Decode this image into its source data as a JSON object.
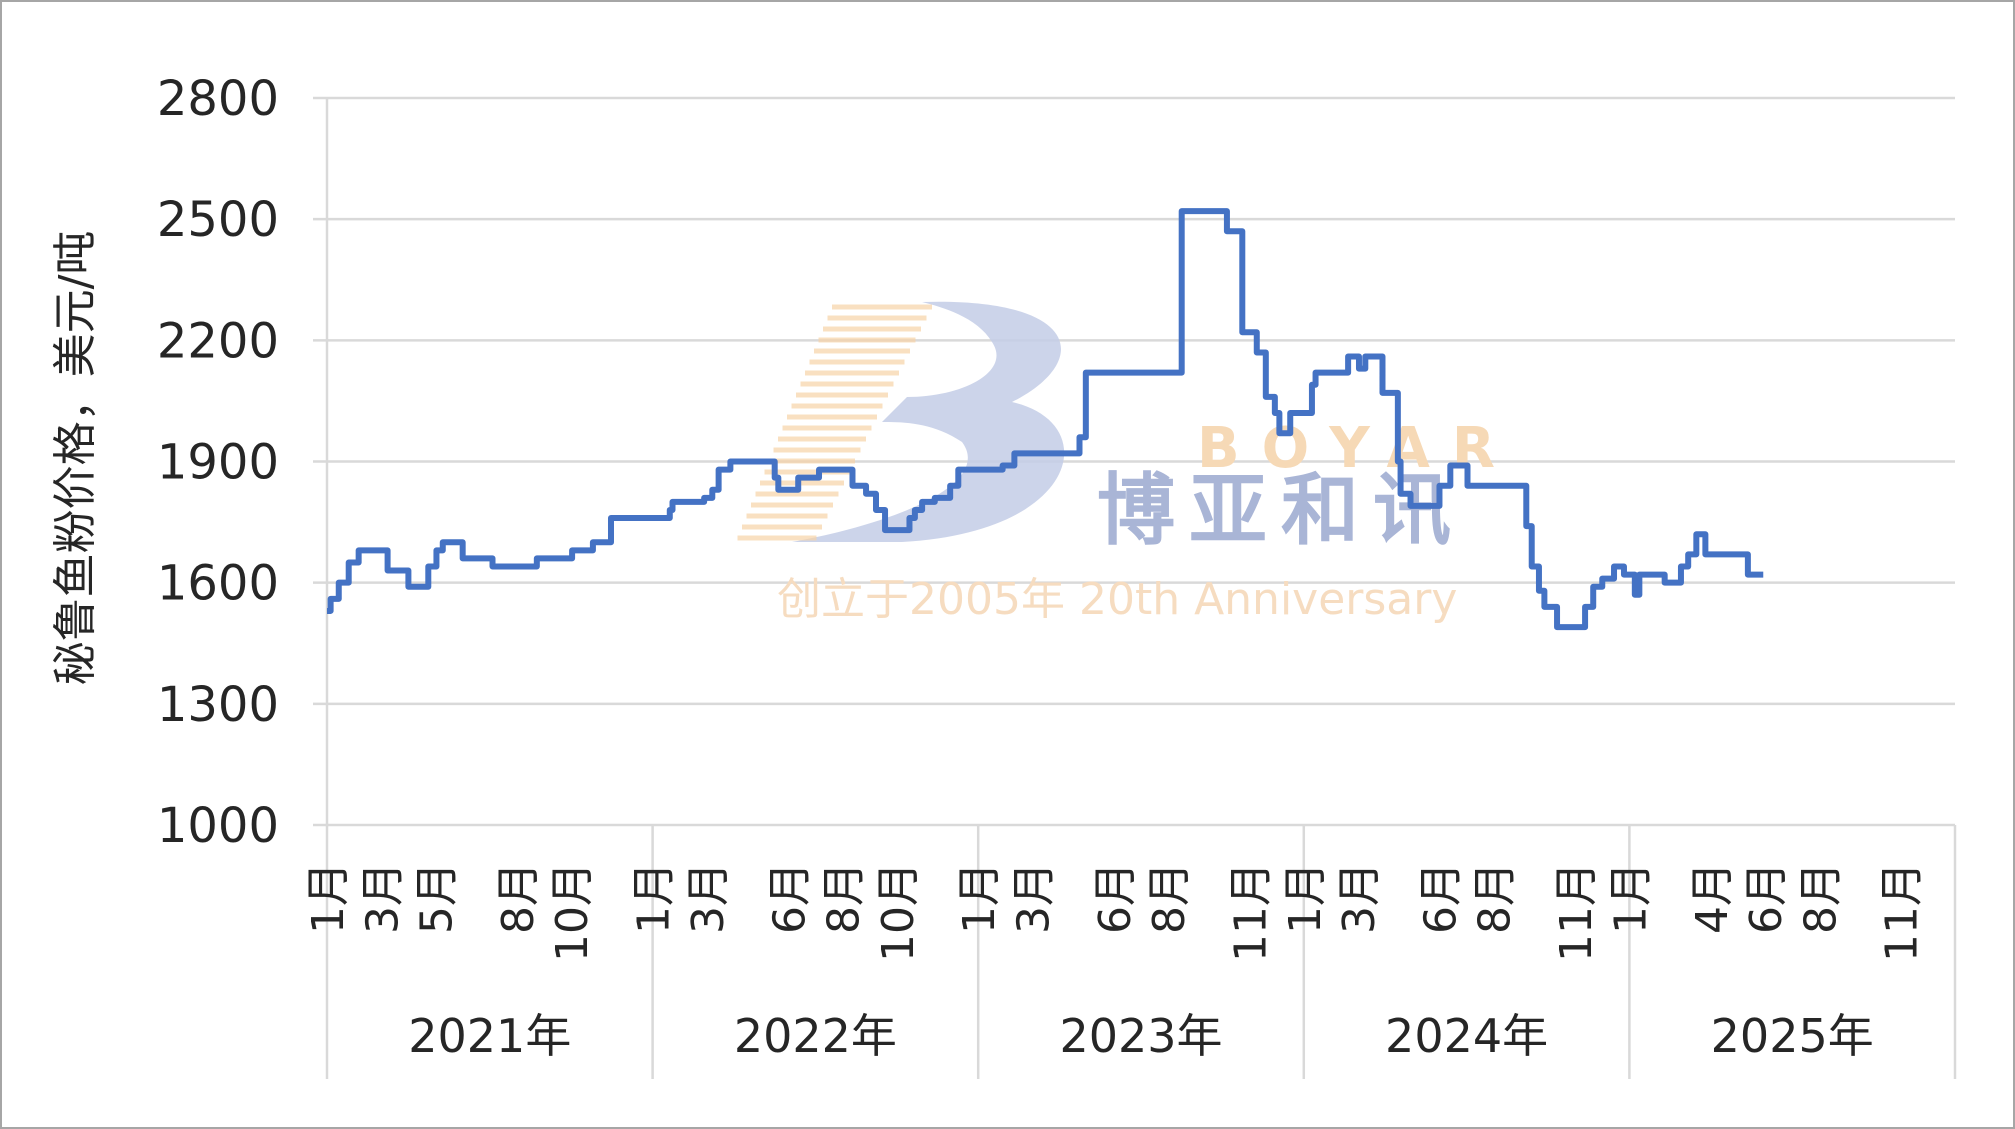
{
  "chart_data": {
    "type": "line",
    "step": true,
    "ylabel": "秘鲁鱼粉价格，美元/吨",
    "ylim": [
      1000,
      2800
    ],
    "yticks": [
      1000,
      1300,
      1600,
      1900,
      2200,
      2500,
      2800
    ],
    "grid": true,
    "legend": "none",
    "color": "#4472c4",
    "xrange": [
      "2021-01",
      "2025-12"
    ],
    "year_groups": [
      {
        "year": "2021年",
        "months": [
          "1月",
          "3月",
          "5月",
          "8月",
          "10月"
        ],
        "month_nums": [
          1,
          3,
          5,
          8,
          10
        ]
      },
      {
        "year": "2022年",
        "months": [
          "1月",
          "3月",
          "6月",
          "8月",
          "10月"
        ],
        "month_nums": [
          1,
          3,
          6,
          8,
          10
        ]
      },
      {
        "year": "2023年",
        "months": [
          "1月",
          "3月",
          "6月",
          "8月",
          "11月"
        ],
        "month_nums": [
          1,
          3,
          6,
          8,
          11
        ]
      },
      {
        "year": "2024年",
        "months": [
          "1月",
          "3月",
          "6月",
          "8月",
          "11月"
        ],
        "month_nums": [
          1,
          3,
          6,
          8,
          11
        ]
      },
      {
        "year": "2025年",
        "months": [
          "1月",
          "4月",
          "6月",
          "8月",
          "11月"
        ],
        "month_nums": [
          1,
          4,
          6,
          8,
          11
        ]
      }
    ],
    "points": [
      [
        "2021-01-01",
        1530
      ],
      [
        "2021-01-05",
        1560
      ],
      [
        "2021-01-14",
        1600
      ],
      [
        "2021-01-25",
        1650
      ],
      [
        "2021-02-06",
        1680
      ],
      [
        "2021-03-08",
        1630
      ],
      [
        "2021-04-01",
        1590
      ],
      [
        "2021-04-23",
        1640
      ],
      [
        "2021-05-02",
        1680
      ],
      [
        "2021-05-09",
        1700
      ],
      [
        "2021-05-31",
        1660
      ],
      [
        "2021-07-04",
        1640
      ],
      [
        "2021-08-23",
        1660
      ],
      [
        "2021-10-02",
        1680
      ],
      [
        "2021-10-25",
        1700
      ],
      [
        "2021-11-15",
        1760
      ],
      [
        "2022-01-20",
        1780
      ],
      [
        "2022-01-23",
        1800
      ],
      [
        "2022-02-28",
        1810
      ],
      [
        "2022-03-07",
        1830
      ],
      [
        "2022-03-14",
        1880
      ],
      [
        "2022-03-27",
        1900
      ],
      [
        "2022-05-16",
        1860
      ],
      [
        "2022-05-20",
        1830
      ],
      [
        "2022-06-12",
        1860
      ],
      [
        "2022-07-05",
        1880
      ],
      [
        "2022-08-12",
        1840
      ],
      [
        "2022-08-27",
        1820
      ],
      [
        "2022-09-08",
        1780
      ],
      [
        "2022-09-18",
        1730
      ],
      [
        "2022-10-15",
        1760
      ],
      [
        "2022-10-21",
        1780
      ],
      [
        "2022-10-29",
        1800
      ],
      [
        "2022-11-13",
        1810
      ],
      [
        "2022-11-30",
        1840
      ],
      [
        "2022-12-09",
        1880
      ],
      [
        "2023-01-28",
        1890
      ],
      [
        "2023-02-11",
        1920
      ],
      [
        "2023-04-23",
        1960
      ],
      [
        "2023-04-30",
        2120
      ],
      [
        "2023-08-16",
        2520
      ],
      [
        "2023-10-06",
        2470
      ],
      [
        "2023-10-23",
        2220
      ],
      [
        "2023-11-09",
        2170
      ],
      [
        "2023-11-19",
        2060
      ],
      [
        "2023-11-29",
        2020
      ],
      [
        "2023-12-04",
        1970
      ],
      [
        "2023-12-16",
        2020
      ],
      [
        "2024-01-10",
        2090
      ],
      [
        "2024-01-14",
        2120
      ],
      [
        "2024-02-20",
        2160
      ],
      [
        "2024-03-02",
        2130
      ],
      [
        "2024-03-09",
        2160
      ],
      [
        "2024-03-28",
        2070
      ],
      [
        "2024-04-15",
        1900
      ],
      [
        "2024-04-18",
        1820
      ],
      [
        "2024-04-29",
        1790
      ],
      [
        "2024-06-01",
        1840
      ],
      [
        "2024-06-13",
        1890
      ],
      [
        "2024-07-02",
        1840
      ],
      [
        "2024-09-07",
        1740
      ],
      [
        "2024-09-13",
        1640
      ],
      [
        "2024-09-21",
        1580
      ],
      [
        "2024-09-27",
        1540
      ],
      [
        "2024-10-11",
        1490
      ],
      [
        "2024-11-12",
        1540
      ],
      [
        "2024-11-21",
        1590
      ],
      [
        "2024-12-01",
        1610
      ],
      [
        "2024-12-14",
        1640
      ],
      [
        "2024-12-25",
        1620
      ],
      [
        "2025-01-07",
        1570
      ],
      [
        "2025-01-12",
        1620
      ],
      [
        "2025-02-10",
        1600
      ],
      [
        "2025-02-28",
        1640
      ],
      [
        "2025-03-06",
        1670
      ],
      [
        "2025-03-15",
        1720
      ],
      [
        "2025-03-25",
        1670
      ],
      [
        "2025-05-12",
        1620
      ],
      [
        "2025-05-29",
        1620
      ]
    ]
  },
  "watermark": {
    "brand_en": "BOYAR",
    "brand_cn": "博亚和讯",
    "tagline": "创立于2005年 20th Anniversary"
  }
}
